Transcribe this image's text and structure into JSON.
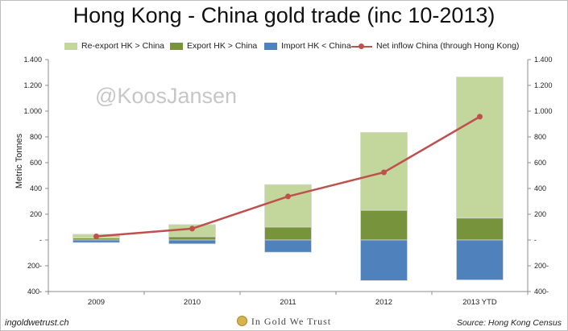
{
  "title": "Hong Kong - China gold trade (inc 10-2013)",
  "watermark": "@KoosJansen",
  "footer": {
    "left": "ingoldwetrust.ch",
    "center": "In Gold We Trust",
    "right": "Source: Hong Kong Census"
  },
  "colors": {
    "reexport": "#c3d69b",
    "export": "#77933c",
    "import": "#4f81bd",
    "net": "#c0504d"
  },
  "chart_data": {
    "type": "bar",
    "title": "Hong Kong - China gold trade (inc 10-2013)",
    "ylabel": "Metric Tonnes",
    "ylim": [
      -400,
      1400
    ],
    "yticks": [
      -400,
      -200,
      0,
      200,
      400,
      600,
      800,
      1000,
      1200,
      1400
    ],
    "ytick_labels": [
      "400-",
      "200-",
      "-",
      "200",
      "400",
      "600",
      "800",
      "1.000",
      "1.200",
      "1.400"
    ],
    "categories": [
      "2009",
      "2010",
      "2011",
      "2012",
      "2013 YTD"
    ],
    "stacked": true,
    "grid": false,
    "legend_position": "top",
    "series": [
      {
        "name": "Re-export HK > China",
        "type": "bar",
        "values": [
          30,
          95,
          330,
          605,
          1095
        ]
      },
      {
        "name": "Export HK > China",
        "type": "bar",
        "values": [
          15,
          25,
          100,
          230,
          170
        ]
      },
      {
        "name": "Import HK < China",
        "type": "bar",
        "values": [
          -20,
          -30,
          -95,
          -315,
          -310
        ]
      },
      {
        "name": "Net inflow China (through Hong Kong)",
        "type": "line",
        "values": [
          28,
          88,
          338,
          525,
          957
        ]
      }
    ]
  }
}
